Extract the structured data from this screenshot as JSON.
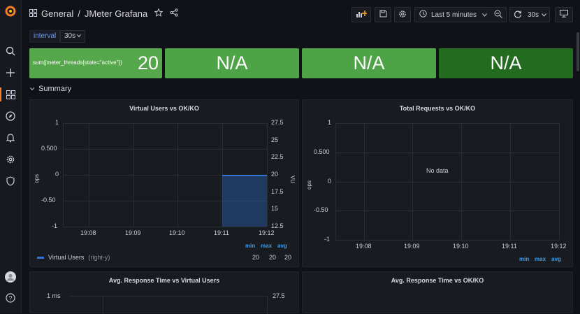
{
  "header": {
    "section": "General",
    "separator": "/",
    "title": "JMeter Grafana"
  },
  "toolbar": {
    "time_range": "Last 5 minutes",
    "refresh_interval": "30s"
  },
  "variables": {
    "interval_label": "interval",
    "interval_value": "30s"
  },
  "stats": [
    {
      "label": "sum(jmeter_threads{state=\"active\"})",
      "value": "20",
      "color": "#56a64b"
    },
    {
      "label": "",
      "value": "N/A",
      "color": "#4da345"
    },
    {
      "label": "",
      "value": "N/A",
      "color": "#4da345"
    },
    {
      "label": "",
      "value": "N/A",
      "color": "#236c1f"
    }
  ],
  "row": {
    "title": "Summary"
  },
  "panels": {
    "virtual_users": {
      "title": "Virtual Users vs OK/KO",
      "left_axis_label": "ops",
      "right_axis_label": "VU",
      "left_ticks": [
        "1",
        "0.500",
        "0",
        "-0.50",
        "-1"
      ],
      "right_ticks": [
        "27.5",
        "25",
        "22.5",
        "20",
        "17.5",
        "15",
        "12.5"
      ],
      "x_ticks": [
        "19:08",
        "19:09",
        "19:10",
        "19:11",
        "19:12"
      ],
      "legend_headers": [
        "min",
        "max",
        "avg"
      ],
      "legend_series": "Virtual Users",
      "legend_axis_note": "(right-y)",
      "legend_values": [
        "20",
        "20",
        "20"
      ]
    },
    "total_requests": {
      "title": "Total Requests vs OK/KO",
      "left_axis_label": "ops",
      "left_ticks": [
        "1",
        "0.500",
        "0",
        "-0.50",
        "-1"
      ],
      "x_ticks": [
        "19:08",
        "19:09",
        "19:10",
        "19:11",
        "19:12"
      ],
      "no_data": "No data",
      "legend_headers": [
        "min",
        "max",
        "avg"
      ]
    },
    "avg_response_vu": {
      "title": "Avg. Response Time vs Virtual Users",
      "first_tick": "1 ms",
      "right_tick": "27.5"
    },
    "avg_response_okko": {
      "title": "Avg. Response Time vs OK/KO"
    }
  },
  "colors": {
    "accent": "#f47c2b",
    "series_blue": "#3274d9",
    "legend_blue": "#3d9ef0"
  },
  "chart_data": {
    "type": "area",
    "title": "Virtual Users vs OK/KO",
    "x": [
      "19:11",
      "19:12"
    ],
    "series": [
      {
        "name": "Virtual Users",
        "axis": "right",
        "values": [
          20,
          20
        ]
      }
    ],
    "x_ticks": [
      "19:08",
      "19:09",
      "19:10",
      "19:11",
      "19:12"
    ],
    "ylim_left": [
      -1,
      1
    ],
    "ylim_right": [
      12.5,
      27.5
    ],
    "ylabel": "ops",
    "y2label": "VU"
  }
}
